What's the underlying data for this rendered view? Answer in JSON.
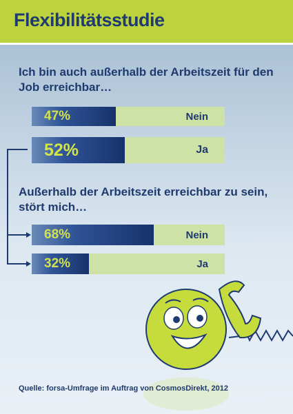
{
  "title": "Flexibilitätsstudie",
  "chart_data": [
    {
      "type": "bar",
      "title": "Ich bin auch außerhalb der Arbeitszeit für den Job erreichbar…",
      "title_lines": [
        "Ich bin auch außerhalb der Arbeitszeit für den",
        "Job erreichbar…"
      ],
      "categories": [
        "Nein",
        "Ja"
      ],
      "values": [
        47,
        52
      ],
      "labels": [
        "47%",
        "52%"
      ],
      "unit": "%",
      "ylim": [
        0,
        100
      ]
    },
    {
      "type": "bar",
      "title": "Außerhalb der Arbeitszeit erreichbar zu sein, stört mich…",
      "title_lines": [
        "Außerhalb der Arbeitszeit erreichbar zu sein,",
        "stört mich…"
      ],
      "categories": [
        "Nein",
        "Ja"
      ],
      "values": [
        68,
        32
      ],
      "labels": [
        "68%",
        "32%"
      ],
      "unit": "%",
      "ylim": [
        0,
        100
      ]
    }
  ],
  "source": "Quelle: forsa-Umfrage im Auftrag von CosmosDirekt, 2012",
  "colors": {
    "header": "#bcd33e",
    "bar_dark": "#17326a",
    "bar_track": "#cfe2a6",
    "percent_text": "#d3e34c",
    "text": "#1e3a6e",
    "face": "#c6dc3c"
  },
  "illustration": [
    "smiley-face-icon",
    "telephone-handset-icon"
  ]
}
